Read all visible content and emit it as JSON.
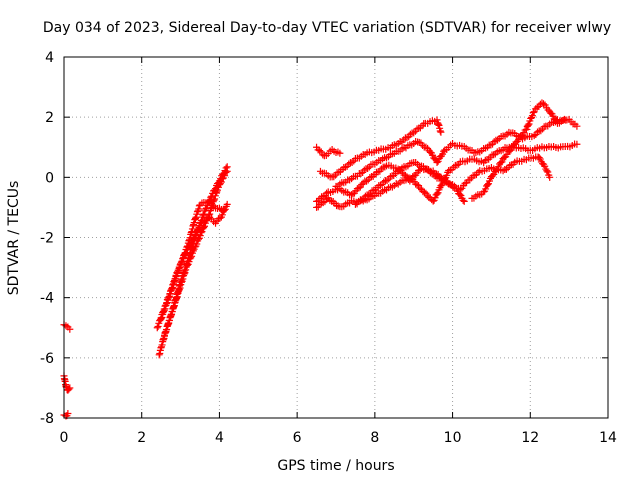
{
  "chart_data": {
    "type": "scatter",
    "title": "Day 034 of 2023, Sidereal Day-to-day VTEC variation (SDTVAR) for receiver wlwy",
    "xlabel": "GPS time / hours",
    "ylabel": "SDTVAR / TECUs",
    "xlim": [
      0,
      14
    ],
    "ylim": [
      -8,
      4
    ],
    "x_ticks": [
      0,
      2,
      4,
      6,
      8,
      10,
      12,
      14
    ],
    "y_ticks": [
      -8,
      -6,
      -4,
      -2,
      0,
      2,
      4
    ],
    "x_tick_labels": [
      "0",
      "2",
      "4",
      "6",
      "8",
      "10",
      "12",
      "14"
    ],
    "y_tick_labels": [
      "-8",
      "-6",
      "-4",
      "-2",
      "0",
      "2",
      "4"
    ],
    "grid": true,
    "marker": "plus",
    "color": "#ff0000",
    "series": [
      {
        "tracks": [
          [
            [
              0.0,
              -4.9
            ],
            [
              0.05,
              -4.95
            ],
            [
              0.1,
              -5.0
            ],
            [
              0.15,
              -5.05
            ]
          ],
          [
            [
              0.0,
              -6.6
            ],
            [
              0.03,
              -6.8
            ],
            [
              0.06,
              -7.0
            ],
            [
              0.1,
              -7.1
            ],
            [
              0.15,
              -7.0
            ]
          ],
          [
            [
              0.0,
              -7.9
            ],
            [
              0.05,
              -7.95
            ],
            [
              0.1,
              -7.85
            ]
          ],
          [
            [
              2.45,
              -5.9
            ],
            [
              2.6,
              -5.2
            ],
            [
              2.8,
              -4.4
            ],
            [
              3.0,
              -3.5
            ],
            [
              3.2,
              -2.7
            ],
            [
              3.4,
              -1.9
            ],
            [
              3.6,
              -1.2
            ],
            [
              3.8,
              -0.6
            ],
            [
              4.0,
              -0.1
            ],
            [
              4.2,
              0.35
            ]
          ],
          [
            [
              2.4,
              -5.0
            ],
            [
              2.6,
              -4.3
            ],
            [
              2.8,
              -3.6
            ],
            [
              3.0,
              -2.9
            ],
            [
              3.2,
              -2.2
            ],
            [
              3.35,
              -1.5
            ],
            [
              3.5,
              -0.9
            ],
            [
              3.7,
              -0.8
            ],
            [
              3.9,
              -1.0
            ],
            [
              4.1,
              -1.1
            ]
          ],
          [
            [
              2.5,
              -4.7
            ],
            [
              2.7,
              -4.0
            ],
            [
              2.9,
              -3.2
            ],
            [
              3.1,
              -2.6
            ],
            [
              3.3,
              -2.1
            ],
            [
              3.5,
              -1.6
            ],
            [
              3.7,
              -1.3
            ],
            [
              3.9,
              -1.5
            ],
            [
              4.05,
              -1.3
            ],
            [
              4.2,
              -0.9
            ]
          ],
          [
            [
              2.55,
              -5.4
            ],
            [
              2.75,
              -4.6
            ],
            [
              2.95,
              -3.8
            ],
            [
              3.15,
              -3.0
            ],
            [
              3.35,
              -2.4
            ],
            [
              3.55,
              -1.8
            ],
            [
              3.75,
              -1.2
            ],
            [
              3.95,
              -0.4
            ],
            [
              4.1,
              0.0
            ],
            [
              4.2,
              0.2
            ]
          ],
          [
            [
              6.5,
              1.0
            ],
            [
              6.7,
              0.7
            ],
            [
              6.9,
              0.9
            ],
            [
              7.1,
              0.8
            ]
          ],
          [
            [
              6.5,
              -0.8
            ],
            [
              6.8,
              -0.5
            ],
            [
              7.1,
              -0.4
            ],
            [
              7.4,
              -0.6
            ],
            [
              7.7,
              -0.2
            ],
            [
              8.0,
              0.1
            ],
            [
              8.3,
              0.4
            ],
            [
              8.6,
              0.3
            ],
            [
              8.9,
              -0.1
            ],
            [
              9.2,
              0.3
            ],
            [
              9.5,
              0.2
            ],
            [
              9.8,
              -0.1
            ],
            [
              10.1,
              -0.4
            ],
            [
              10.3,
              -0.8
            ]
          ],
          [
            [
              6.5,
              -1.0
            ],
            [
              6.8,
              -0.7
            ],
            [
              7.1,
              -1.0
            ],
            [
              7.4,
              -0.8
            ],
            [
              7.7,
              -0.8
            ],
            [
              8.0,
              -0.6
            ],
            [
              8.3,
              -0.4
            ],
            [
              8.6,
              -0.2
            ],
            [
              8.9,
              0.0
            ],
            [
              9.2,
              -0.4
            ],
            [
              9.5,
              -0.8
            ],
            [
              9.7,
              -0.3
            ],
            [
              9.9,
              0.2
            ],
            [
              10.2,
              0.5
            ],
            [
              10.5,
              0.6
            ],
            [
              10.8,
              0.5
            ],
            [
              11.1,
              0.8
            ],
            [
              11.4,
              1.0
            ],
            [
              11.7,
              1.0
            ],
            [
              12.0,
              0.9
            ],
            [
              12.3,
              1.0
            ],
            [
              12.6,
              1.0
            ],
            [
              12.9,
              1.0
            ],
            [
              13.2,
              1.1
            ]
          ],
          [
            [
              6.6,
              0.2
            ],
            [
              6.9,
              0.0
            ],
            [
              7.2,
              0.3
            ],
            [
              7.5,
              0.6
            ],
            [
              7.8,
              0.8
            ],
            [
              8.1,
              0.9
            ],
            [
              8.4,
              1.0
            ],
            [
              8.7,
              1.2
            ],
            [
              9.0,
              1.5
            ],
            [
              9.3,
              1.8
            ],
            [
              9.6,
              1.9
            ],
            [
              9.7,
              1.5
            ]
          ],
          [
            [
              7.0,
              -0.3
            ],
            [
              7.3,
              -0.1
            ],
            [
              7.6,
              0.1
            ],
            [
              7.9,
              0.4
            ],
            [
              8.2,
              0.6
            ],
            [
              8.5,
              0.8
            ],
            [
              8.8,
              1.0
            ],
            [
              9.1,
              1.2
            ],
            [
              9.4,
              0.9
            ],
            [
              9.6,
              0.5
            ],
            [
              9.8,
              0.9
            ],
            [
              10.0,
              1.1
            ],
            [
              10.3,
              1.0
            ],
            [
              10.6,
              0.8
            ],
            [
              10.9,
              1.0
            ],
            [
              11.2,
              1.3
            ],
            [
              11.5,
              1.5
            ],
            [
              11.8,
              1.3
            ],
            [
              12.1,
              1.4
            ],
            [
              12.4,
              1.7
            ],
            [
              12.7,
              1.9
            ],
            [
              13.0,
              1.9
            ],
            [
              13.2,
              1.7
            ]
          ],
          [
            [
              7.5,
              -0.9
            ],
            [
              7.8,
              -0.6
            ],
            [
              8.1,
              -0.3
            ],
            [
              8.4,
              0.0
            ],
            [
              8.7,
              0.3
            ],
            [
              9.0,
              0.5
            ],
            [
              9.3,
              0.3
            ],
            [
              9.6,
              0.0
            ],
            [
              9.9,
              -0.2
            ],
            [
              10.2,
              -0.4
            ],
            [
              10.4,
              -0.1
            ],
            [
              10.7,
              0.2
            ],
            [
              11.0,
              0.3
            ],
            [
              11.3,
              0.2
            ],
            [
              11.6,
              0.5
            ],
            [
              11.9,
              0.6
            ],
            [
              12.2,
              0.7
            ],
            [
              12.4,
              0.3
            ],
            [
              12.5,
              0.0
            ]
          ],
          [
            [
              10.5,
              -0.7
            ],
            [
              10.8,
              -0.5
            ],
            [
              11.0,
              0.0
            ],
            [
              11.3,
              0.6
            ],
            [
              11.6,
              1.1
            ],
            [
              11.9,
              1.6
            ],
            [
              12.1,
              2.2
            ],
            [
              12.3,
              2.5
            ],
            [
              12.5,
              2.2
            ],
            [
              12.7,
              1.8
            ],
            [
              12.9,
              1.9
            ]
          ]
        ]
      }
    ]
  }
}
